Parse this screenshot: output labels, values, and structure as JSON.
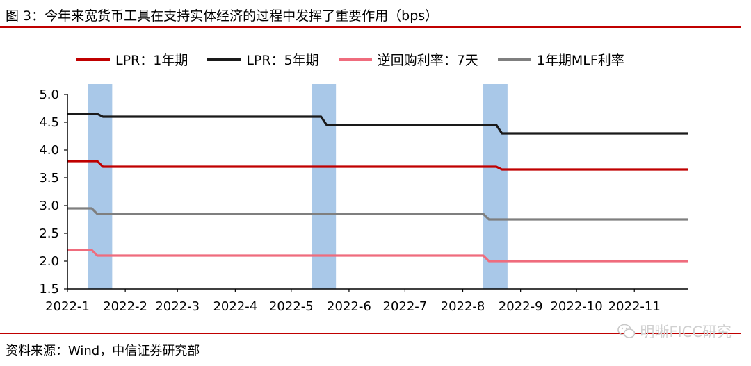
{
  "figure": {
    "title": "图 3：今年来宽货币工具在支持实体经济的过程中发挥了重要作用（bps）",
    "source": "资料来源：Wind，中信证券研究部",
    "watermark": "明晰FICC研究",
    "watermark_icon": "wechat-icon",
    "rule_color": "#c00000"
  },
  "chart_data": {
    "type": "line",
    "title": "",
    "xlabel": "",
    "ylabel": "",
    "ylim": [
      1.5,
      5.0
    ],
    "yticks": [
      "5.0",
      "4.5",
      "4.0",
      "3.5",
      "3.0",
      "2.5",
      "2.0",
      "1.5"
    ],
    "x_start": "2022-01-01",
    "x_end": "2022-11-30",
    "xtick_labels": [
      "2022-1",
      "2022-2",
      "2022-3",
      "2022-4",
      "2022-5",
      "2022-6",
      "2022-7",
      "2022-8",
      "2022-9",
      "2022-10",
      "2022-11"
    ],
    "legend_position": "top",
    "grid": false,
    "highlight_color": "#a9c8e8",
    "highlight_periods": [
      {
        "start": "2022-01-12",
        "end": "2022-01-25"
      },
      {
        "start": "2022-05-12",
        "end": "2022-05-25"
      },
      {
        "start": "2022-08-12",
        "end": "2022-08-25"
      }
    ],
    "series": [
      {
        "name": "LPR：1年期",
        "color": "#c00000",
        "x": [
          "2022-01-01",
          "2022-01-20",
          "2022-08-22",
          "2022-11-30"
        ],
        "values": [
          3.8,
          3.7,
          3.65,
          3.65
        ]
      },
      {
        "name": "LPR：5年期",
        "color": "#1a1a1a",
        "x": [
          "2022-01-01",
          "2022-01-20",
          "2022-05-20",
          "2022-08-22",
          "2022-11-30"
        ],
        "values": [
          4.65,
          4.6,
          4.45,
          4.3,
          4.3
        ]
      },
      {
        "name": "逆回购利率：7天",
        "color": "#ef6c7d",
        "x": [
          "2022-01-01",
          "2022-01-17",
          "2022-08-15",
          "2022-11-30"
        ],
        "values": [
          2.2,
          2.1,
          2.0,
          2.0
        ]
      },
      {
        "name": "1年期MLF利率",
        "color": "#7f7f7f",
        "x": [
          "2022-01-01",
          "2022-01-17",
          "2022-08-15",
          "2022-11-30"
        ],
        "values": [
          2.95,
          2.85,
          2.75,
          2.75
        ]
      }
    ]
  }
}
